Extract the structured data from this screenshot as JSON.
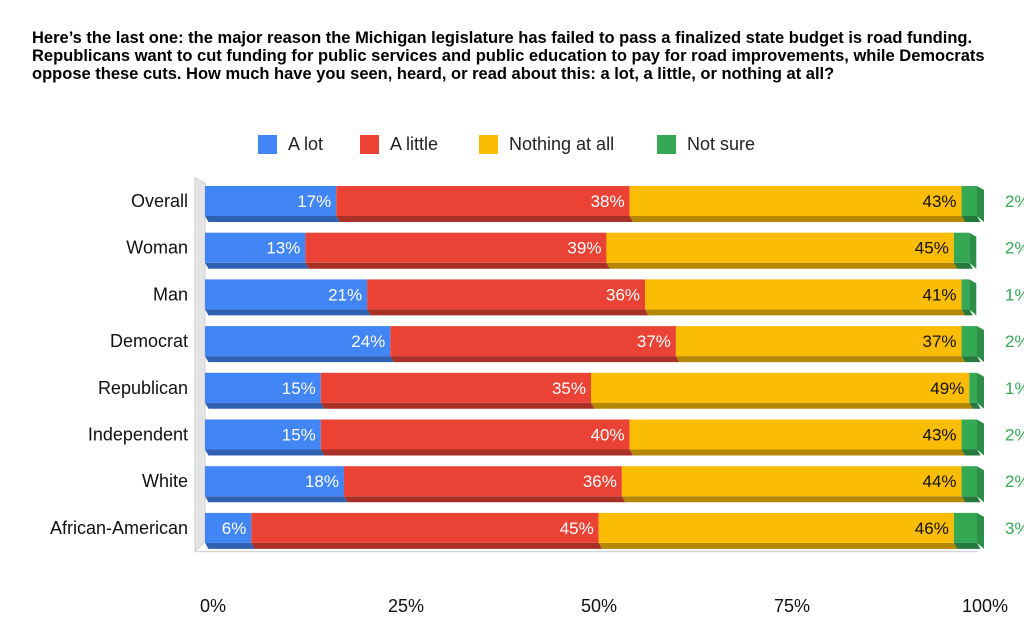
{
  "chart_data": {
    "type": "bar",
    "orientation": "horizontal",
    "stacked": true,
    "percent_stacked": true,
    "title": "Here’s the last one: the major reason the Michigan legislature has failed to pass a finalized state budget is road funding. Republicans want to cut funding for public services and public education to pay for road improvements, while Democrats oppose these cuts. How much have you seen, heard, or read about this: a lot, a little, or nothing at all?",
    "categories": [
      "Overall",
      "Woman",
      "Man",
      "Democrat",
      "Republican",
      "Independent",
      "White",
      "African-American"
    ],
    "series": [
      {
        "name": "A lot",
        "color": "#4285f4",
        "values": [
          17,
          13,
          21,
          24,
          15,
          15,
          18,
          6
        ],
        "labels": [
          "17%",
          "13%",
          "21%",
          "24%",
          "15%",
          "15%",
          "18%",
          "6%"
        ]
      },
      {
        "name": "A little",
        "color": "#ea4335",
        "values": [
          38,
          39,
          36,
          37,
          35,
          40,
          36,
          45
        ],
        "labels": [
          "38%",
          "39%",
          "36%",
          "37%",
          "35%",
          "40%",
          "36%",
          "45%"
        ]
      },
      {
        "name": "Nothing at all",
        "color": "#fbbc04",
        "values": [
          43,
          45,
          41,
          37,
          49,
          43,
          44,
          46
        ],
        "labels": [
          "43%",
          "45%",
          "41%",
          "37%",
          "49%",
          "43%",
          "44%",
          "46%"
        ]
      },
      {
        "name": "Not sure",
        "color": "#34a853",
        "values": [
          2,
          2,
          1,
          2,
          1,
          2,
          2,
          3
        ],
        "labels": [
          "2%",
          "2%",
          "1%",
          "2%",
          "1%",
          "2%",
          "2%",
          "3%"
        ]
      }
    ],
    "xlim": [
      0,
      100
    ],
    "x_ticks": [
      "0%",
      "25%",
      "50%",
      "75%",
      "100%"
    ],
    "legend_position": "top",
    "grid": false,
    "style": "3d-bars"
  }
}
